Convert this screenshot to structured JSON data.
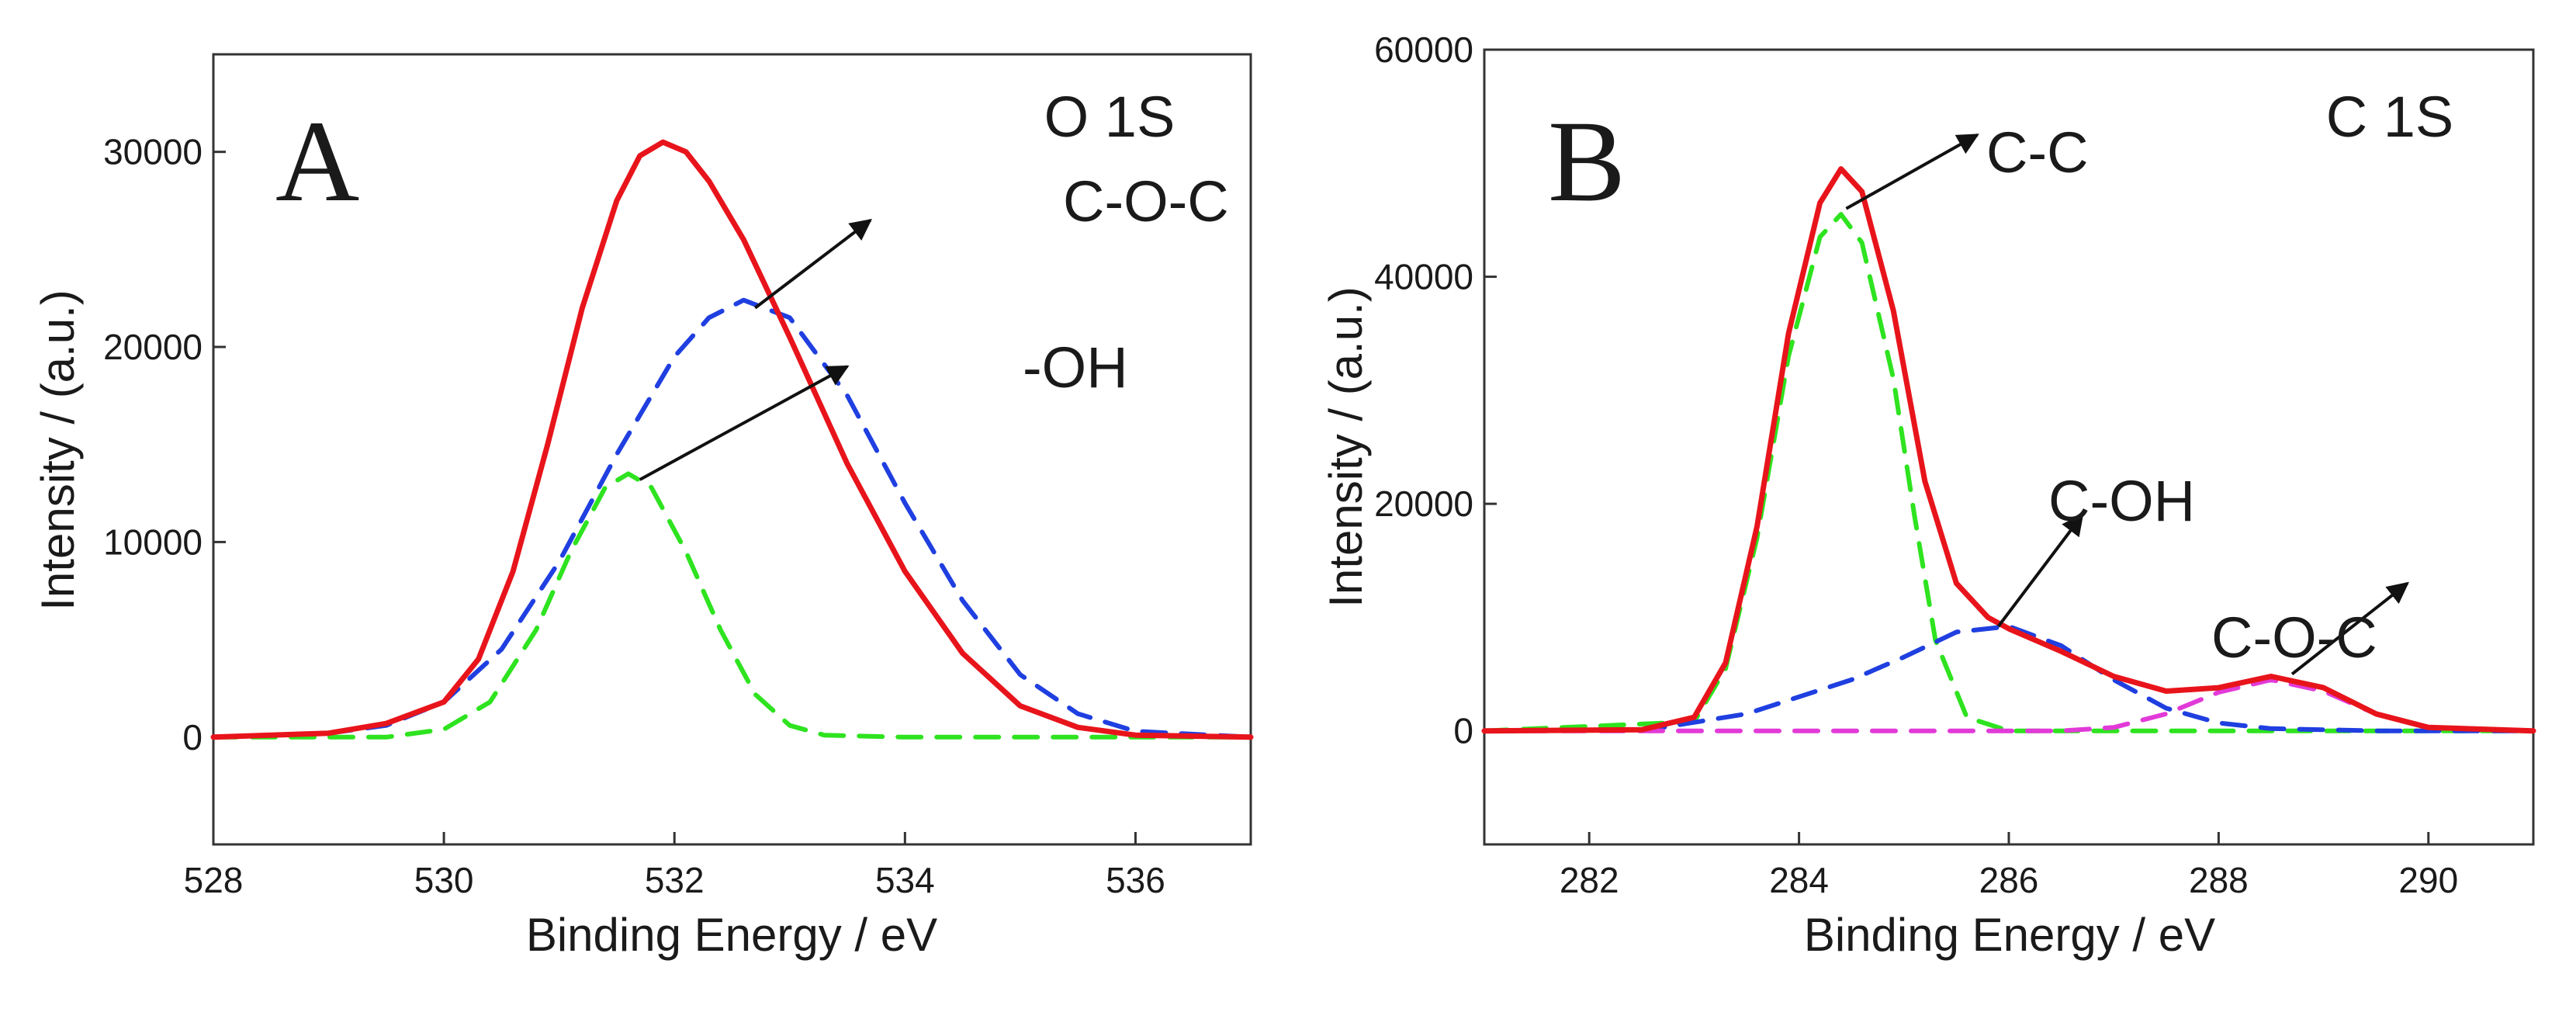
{
  "colors": {
    "envelope": "#e8141b",
    "peak_blue": "#1f3fe0",
    "peak_green": "#2ee31f",
    "peak_magenta": "#e23ad8",
    "axis": "#333333",
    "arrow": "#111111"
  },
  "chart_data": [
    {
      "type": "line",
      "panel_label": "A",
      "title": "O 1S",
      "xlabel": "Binding Energy / eV",
      "ylabel": "Intensity / (a.u.)",
      "xlim": [
        528,
        537
      ],
      "ylim": [
        -5500,
        35000
      ],
      "x_ticks": [
        528,
        530,
        532,
        534,
        536
      ],
      "y_ticks": [
        0,
        10000,
        20000,
        30000
      ],
      "grid": false,
      "series": [
        {
          "role": "envelope",
          "color_key": "envelope",
          "style": "solid",
          "x": [
            528,
            529,
            529.5,
            530,
            530.3,
            530.6,
            530.9,
            531.2,
            531.5,
            531.7,
            531.9,
            532.1,
            532.3,
            532.6,
            533.0,
            533.5,
            534.0,
            534.5,
            535.0,
            535.5,
            536.0,
            537
          ],
          "y": [
            0,
            200,
            700,
            1800,
            4000,
            8500,
            15000,
            22000,
            27500,
            29800,
            30500,
            30000,
            28500,
            25500,
            20500,
            14000,
            8500,
            4300,
            1600,
            500,
            100,
            0
          ]
        },
        {
          "role": "component",
          "color_key": "peak_blue",
          "style": "dashed",
          "x": [
            529.0,
            529.5,
            530.0,
            530.5,
            531.0,
            531.5,
            532.0,
            532.3,
            532.6,
            533.0,
            533.5,
            534.0,
            534.5,
            535.0,
            535.5,
            536.0,
            537
          ],
          "y": [
            200,
            600,
            1800,
            4500,
            9000,
            14500,
            19500,
            21500,
            22400,
            21500,
            17500,
            12000,
            7000,
            3200,
            1200,
            300,
            0
          ]
        },
        {
          "role": "component",
          "color_key": "peak_green",
          "style": "dashed",
          "x": [
            528,
            529.5,
            530.0,
            530.4,
            530.8,
            531.1,
            531.4,
            531.6,
            531.8,
            532.1,
            532.4,
            532.7,
            533.0,
            533.3,
            534,
            537
          ],
          "y": [
            0,
            0,
            400,
            1800,
            5500,
            9500,
            12800,
            13500,
            12800,
            9500,
            5500,
            2200,
            600,
            100,
            0,
            0
          ]
        }
      ],
      "annotations": [
        {
          "text": "C-O-C",
          "from_x": 532.7,
          "from_y": 22000,
          "to_x": 533.7,
          "to_y": 26500
        },
        {
          "text": "-OH",
          "from_x": 531.7,
          "from_y": 13200,
          "to_x": 533.5,
          "to_y": 19000
        }
      ]
    },
    {
      "type": "line",
      "panel_label": "B",
      "title": "C 1S",
      "xlabel": "Binding Energy / eV",
      "ylabel": "Intensity / (a.u.)",
      "xlim": [
        281,
        291
      ],
      "ylim": [
        -10000,
        60000
      ],
      "x_ticks": [
        282,
        284,
        286,
        288,
        290
      ],
      "y_ticks": [
        0,
        20000,
        40000,
        60000
      ],
      "grid": false,
      "series": [
        {
          "role": "envelope",
          "color_key": "envelope",
          "style": "solid",
          "x": [
            281,
            282.5,
            283.0,
            283.3,
            283.6,
            283.9,
            284.2,
            284.4,
            284.6,
            284.9,
            285.2,
            285.5,
            285.8,
            286.0,
            286.5,
            287.0,
            287.5,
            288.0,
            288.5,
            289.0,
            289.5,
            290.0,
            291
          ],
          "y": [
            0,
            100,
            1200,
            6000,
            18000,
            35000,
            46500,
            49500,
            47500,
            37000,
            22000,
            13000,
            10000,
            9000,
            7000,
            4800,
            3500,
            3800,
            4800,
            3800,
            1500,
            300,
            0
          ]
        },
        {
          "role": "component",
          "color_key": "peak_green",
          "style": "dashed",
          "x": [
            281,
            283.0,
            283.3,
            283.6,
            283.9,
            284.2,
            284.4,
            284.6,
            284.9,
            285.1,
            285.3,
            285.6,
            286,
            291
          ],
          "y": [
            0,
            800,
            5500,
            17000,
            33000,
            43500,
            45500,
            43000,
            31000,
            19000,
            8000,
            1200,
            0,
            0
          ]
        },
        {
          "role": "component",
          "color_key": "peak_blue",
          "style": "dashed",
          "x": [
            282.5,
            283.5,
            284.5,
            285.0,
            285.5,
            286.0,
            286.5,
            287.0,
            287.5,
            288.0,
            288.5,
            289.5,
            291
          ],
          "y": [
            0,
            1500,
            4500,
            6500,
            8700,
            9200,
            7500,
            4500,
            2000,
            700,
            200,
            0,
            0
          ]
        },
        {
          "role": "component",
          "color_key": "peak_magenta",
          "style": "dashed",
          "x": [
            281,
            286.5,
            287.0,
            287.5,
            288.0,
            288.5,
            289.0,
            289.5,
            290.0,
            291
          ],
          "y": [
            0,
            0,
            300,
            1500,
            3400,
            4500,
            3500,
            1500,
            300,
            0
          ]
        }
      ],
      "annotations": [
        {
          "text": "C-C",
          "from_x": 284.45,
          "from_y": 46000,
          "to_x": 285.7,
          "to_y": 52500
        },
        {
          "text": "C-OH",
          "from_x": 285.9,
          "from_y": 9200,
          "to_x": 286.7,
          "to_y": 19000
        },
        {
          "text": "C-O-C",
          "from_x": 288.7,
          "from_y": 5000,
          "to_x": 289.8,
          "to_y": 13000
        }
      ]
    }
  ]
}
